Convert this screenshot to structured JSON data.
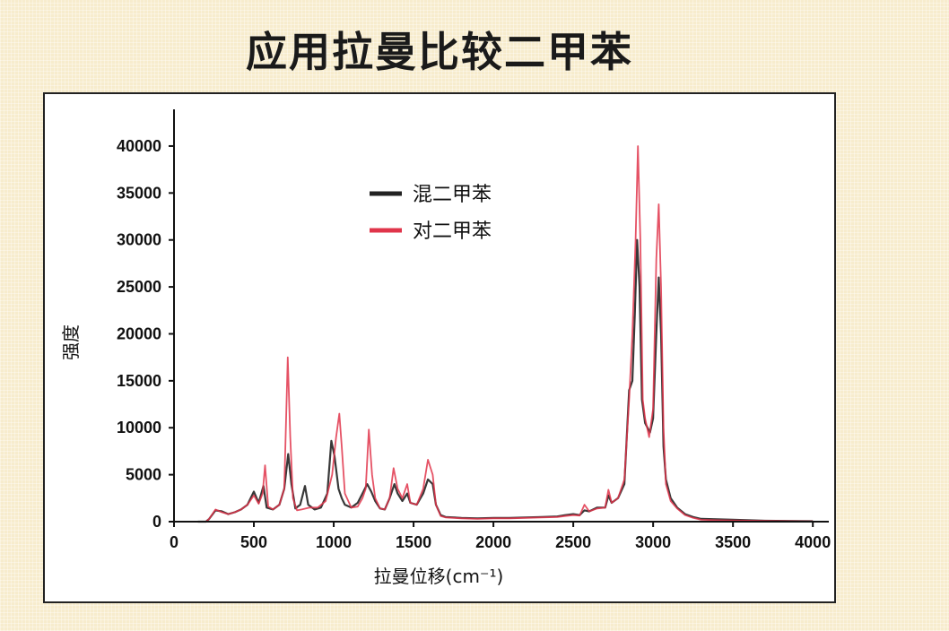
{
  "title": "应用拉曼比较二甲苯",
  "chart_data": {
    "type": "line",
    "xlabel": "拉曼位移(cm⁻¹)",
    "ylabel": "强度",
    "xlim": [
      0,
      4100
    ],
    "ylim": [
      0,
      42000
    ],
    "xticks": [
      0,
      500,
      1000,
      1500,
      2000,
      2500,
      3000,
      3500,
      4000
    ],
    "yticks": [
      0,
      5000,
      10000,
      15000,
      20000,
      25000,
      30000,
      35000,
      40000
    ],
    "legend_position": "upper-left-center",
    "series": [
      {
        "name": "混二甲苯",
        "color": "#222222",
        "points": [
          [
            150,
            0
          ],
          [
            200,
            0
          ],
          [
            220,
            300
          ],
          [
            260,
            1200
          ],
          [
            300,
            1100
          ],
          [
            340,
            800
          ],
          [
            380,
            1000
          ],
          [
            420,
            1300
          ],
          [
            460,
            1800
          ],
          [
            500,
            3200
          ],
          [
            530,
            2000
          ],
          [
            560,
            3800
          ],
          [
            580,
            1500
          ],
          [
            620,
            1300
          ],
          [
            660,
            1800
          ],
          [
            690,
            3500
          ],
          [
            715,
            7200
          ],
          [
            735,
            4000
          ],
          [
            760,
            1400
          ],
          [
            790,
            1800
          ],
          [
            820,
            3800
          ],
          [
            840,
            1800
          ],
          [
            880,
            1300
          ],
          [
            920,
            1500
          ],
          [
            960,
            3000
          ],
          [
            985,
            8600
          ],
          [
            1005,
            7000
          ],
          [
            1030,
            3500
          ],
          [
            1050,
            2500
          ],
          [
            1070,
            1800
          ],
          [
            1110,
            1500
          ],
          [
            1150,
            2000
          ],
          [
            1180,
            3000
          ],
          [
            1210,
            4000
          ],
          [
            1235,
            3200
          ],
          [
            1260,
            2200
          ],
          [
            1290,
            1400
          ],
          [
            1320,
            1300
          ],
          [
            1350,
            2500
          ],
          [
            1380,
            4000
          ],
          [
            1400,
            3000
          ],
          [
            1430,
            2200
          ],
          [
            1460,
            3000
          ],
          [
            1480,
            2000
          ],
          [
            1520,
            1800
          ],
          [
            1560,
            3000
          ],
          [
            1590,
            4500
          ],
          [
            1620,
            4000
          ],
          [
            1640,
            1800
          ],
          [
            1670,
            700
          ],
          [
            1700,
            500
          ],
          [
            1800,
            400
          ],
          [
            1900,
            350
          ],
          [
            2000,
            400
          ],
          [
            2100,
            400
          ],
          [
            2200,
            450
          ],
          [
            2300,
            500
          ],
          [
            2400,
            550
          ],
          [
            2450,
            700
          ],
          [
            2500,
            800
          ],
          [
            2540,
            700
          ],
          [
            2570,
            1200
          ],
          [
            2600,
            1100
          ],
          [
            2650,
            1500
          ],
          [
            2700,
            1500
          ],
          [
            2720,
            2800
          ],
          [
            2740,
            2000
          ],
          [
            2780,
            2500
          ],
          [
            2820,
            4000
          ],
          [
            2850,
            14000
          ],
          [
            2870,
            15000
          ],
          [
            2885,
            22000
          ],
          [
            2900,
            30000
          ],
          [
            2915,
            25000
          ],
          [
            2930,
            13000
          ],
          [
            2950,
            10500
          ],
          [
            2980,
            9500
          ],
          [
            3000,
            11000
          ],
          [
            3020,
            20000
          ],
          [
            3035,
            26000
          ],
          [
            3050,
            20000
          ],
          [
            3065,
            8000
          ],
          [
            3080,
            4500
          ],
          [
            3110,
            2500
          ],
          [
            3150,
            1500
          ],
          [
            3200,
            800
          ],
          [
            3250,
            500
          ],
          [
            3300,
            300
          ],
          [
            3400,
            250
          ],
          [
            3500,
            200
          ],
          [
            3700,
            100
          ],
          [
            4000,
            50
          ]
        ]
      },
      {
        "name": "对二甲苯",
        "color": "#e0344a",
        "points": [
          [
            150,
            0
          ],
          [
            200,
            0
          ],
          [
            220,
            300
          ],
          [
            260,
            1300
          ],
          [
            300,
            1000
          ],
          [
            340,
            800
          ],
          [
            380,
            1000
          ],
          [
            420,
            1300
          ],
          [
            460,
            1800
          ],
          [
            500,
            2800
          ],
          [
            530,
            1900
          ],
          [
            555,
            3000
          ],
          [
            570,
            6000
          ],
          [
            590,
            1600
          ],
          [
            620,
            1300
          ],
          [
            660,
            1800
          ],
          [
            690,
            3500
          ],
          [
            712,
            17500
          ],
          [
            728,
            9000
          ],
          [
            745,
            2500
          ],
          [
            770,
            1200
          ],
          [
            800,
            1300
          ],
          [
            850,
            1500
          ],
          [
            900,
            1500
          ],
          [
            950,
            2200
          ],
          [
            990,
            5000
          ],
          [
            1015,
            9000
          ],
          [
            1035,
            11500
          ],
          [
            1050,
            8000
          ],
          [
            1070,
            3000
          ],
          [
            1110,
            1500
          ],
          [
            1150,
            1600
          ],
          [
            1180,
            2500
          ],
          [
            1200,
            3500
          ],
          [
            1220,
            9800
          ],
          [
            1240,
            5000
          ],
          [
            1260,
            2500
          ],
          [
            1290,
            1400
          ],
          [
            1320,
            1300
          ],
          [
            1350,
            2500
          ],
          [
            1375,
            5700
          ],
          [
            1400,
            3500
          ],
          [
            1430,
            2500
          ],
          [
            1460,
            4000
          ],
          [
            1480,
            2000
          ],
          [
            1520,
            1800
          ],
          [
            1560,
            3500
          ],
          [
            1590,
            6600
          ],
          [
            1620,
            5000
          ],
          [
            1640,
            1800
          ],
          [
            1670,
            600
          ],
          [
            1700,
            450
          ],
          [
            1800,
            350
          ],
          [
            1900,
            300
          ],
          [
            2000,
            350
          ],
          [
            2100,
            350
          ],
          [
            2200,
            400
          ],
          [
            2300,
            450
          ],
          [
            2400,
            500
          ],
          [
            2450,
            600
          ],
          [
            2500,
            700
          ],
          [
            2540,
            650
          ],
          [
            2570,
            1800
          ],
          [
            2600,
            1100
          ],
          [
            2650,
            1400
          ],
          [
            2700,
            1500
          ],
          [
            2720,
            3400
          ],
          [
            2740,
            2000
          ],
          [
            2780,
            2500
          ],
          [
            2820,
            4500
          ],
          [
            2850,
            13000
          ],
          [
            2870,
            20000
          ],
          [
            2890,
            30000
          ],
          [
            2905,
            40000
          ],
          [
            2920,
            30000
          ],
          [
            2935,
            13000
          ],
          [
            2950,
            11000
          ],
          [
            2975,
            9000
          ],
          [
            3000,
            12000
          ],
          [
            3020,
            28000
          ],
          [
            3035,
            33800
          ],
          [
            3050,
            25000
          ],
          [
            3065,
            10000
          ],
          [
            3080,
            4000
          ],
          [
            3110,
            2200
          ],
          [
            3150,
            1400
          ],
          [
            3200,
            700
          ],
          [
            3250,
            400
          ],
          [
            3300,
            200
          ],
          [
            3400,
            150
          ],
          [
            3500,
            120
          ],
          [
            3700,
            80
          ],
          [
            4000,
            40
          ]
        ]
      }
    ]
  }
}
